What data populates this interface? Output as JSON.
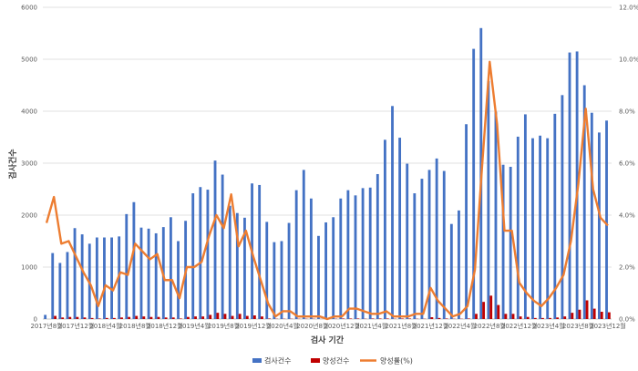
{
  "chart_data": {
    "type": "bar",
    "xlabel": "검사 기간",
    "ylabel": "검사건수",
    "ylim": [
      0,
      6000
    ],
    "y2lim": [
      0,
      12
    ],
    "y_ticks": [
      "0",
      "1000",
      "2000",
      "3000",
      "4000",
      "5000",
      "6000"
    ],
    "y2_ticks": [
      "0.0%",
      "2.0%",
      "4.0%",
      "6.0%",
      "8.0%",
      "10.0%",
      "12.0%"
    ],
    "grid": true,
    "legend": "bottom",
    "x_labels": [
      {
        "i": 0,
        "label": "2017년8월"
      },
      {
        "i": 4,
        "label": "2017년12월"
      },
      {
        "i": 8,
        "label": "2018년4월"
      },
      {
        "i": 12,
        "label": "2018년8월"
      },
      {
        "i": 16,
        "label": "2018년12월"
      },
      {
        "i": 20,
        "label": "2019년4월"
      },
      {
        "i": 24,
        "label": "2019년8월"
      },
      {
        "i": 28,
        "label": "2019년12월"
      },
      {
        "i": 32,
        "label": "2020년4월"
      },
      {
        "i": 36,
        "label": "2020년8월"
      },
      {
        "i": 40,
        "label": "2020년12월"
      },
      {
        "i": 44,
        "label": "2021년4월"
      },
      {
        "i": 48,
        "label": "2021년8월"
      },
      {
        "i": 52,
        "label": "2021년12월"
      },
      {
        "i": 56,
        "label": "2022년4월"
      },
      {
        "i": 60,
        "label": "2022년8월"
      },
      {
        "i": 64,
        "label": "2022년12월"
      },
      {
        "i": 68,
        "label": "2023년4월"
      },
      {
        "i": 72,
        "label": "2023년8월"
      },
      {
        "i": 76,
        "label": "2023년12월"
      }
    ],
    "series": [
      {
        "name": "검사건수",
        "type": "bar",
        "color": "#4472c4",
        "values": [
          80,
          1270,
          1080,
          1290,
          1750,
          1630,
          1450,
          1570,
          1570,
          1570,
          1590,
          2020,
          2250,
          1760,
          1740,
          1650,
          1770,
          1960,
          1500,
          1890,
          2420,
          2540,
          2490,
          3050,
          2780,
          2180,
          2040,
          1950,
          2610,
          2580,
          1870,
          1480,
          1500,
          1850,
          2480,
          2870,
          2320,
          1600,
          1860,
          1960,
          2320,
          2480,
          2380,
          2520,
          2530,
          2790,
          3450,
          4100,
          3490,
          2990,
          2420,
          2700,
          2870,
          3090,
          2850,
          1830,
          2090,
          3750,
          5200,
          5600,
          4580,
          3990,
          2970,
          2930,
          3510,
          3940,
          3480,
          3530,
          3480,
          3950,
          4310,
          5130,
          5150,
          4500,
          3970,
          3590,
          3820
        ]
      },
      {
        "name": "양성건수",
        "type": "bar",
        "color": "#c00000",
        "values": [
          0,
          60,
          30,
          40,
          40,
          30,
          20,
          10,
          20,
          20,
          30,
          40,
          60,
          50,
          40,
          40,
          30,
          30,
          10,
          40,
          50,
          50,
          80,
          120,
          100,
          60,
          100,
          60,
          70,
          50,
          10,
          5,
          5,
          5,
          5,
          5,
          5,
          2,
          2,
          5,
          10,
          10,
          10,
          5,
          10,
          10,
          10,
          5,
          10,
          10,
          5,
          5,
          35,
          20,
          10,
          5,
          5,
          10,
          100,
          330,
          450,
          270,
          100,
          100,
          50,
          40,
          20,
          20,
          20,
          30,
          50,
          120,
          180,
          360,
          200,
          140,
          130
        ]
      },
      {
        "name": "양성률(%)",
        "type": "line",
        "color": "#ed7d31",
        "axis": "right",
        "values": [
          3.7,
          4.7,
          2.9,
          3.0,
          2.4,
          1.8,
          1.3,
          0.5,
          1.3,
          1.1,
          1.8,
          1.7,
          2.9,
          2.6,
          2.3,
          2.5,
          1.5,
          1.5,
          0.8,
          2.0,
          2.0,
          2.2,
          3.2,
          4.0,
          3.5,
          4.8,
          2.8,
          3.4,
          2.4,
          1.5,
          0.6,
          0.1,
          0.3,
          0.3,
          0.1,
          0.1,
          0.1,
          0.1,
          0.0,
          0.1,
          0.1,
          0.4,
          0.4,
          0.3,
          0.2,
          0.2,
          0.3,
          0.1,
          0.1,
          0.1,
          0.2,
          0.2,
          1.2,
          0.7,
          0.4,
          0.1,
          0.2,
          0.5,
          1.9,
          6.0,
          9.9,
          7.5,
          3.4,
          3.4,
          1.4,
          1.0,
          0.7,
          0.5,
          0.8,
          1.2,
          1.7,
          3.0,
          5.2,
          8.1,
          5.0,
          3.9,
          3.6
        ]
      }
    ]
  }
}
